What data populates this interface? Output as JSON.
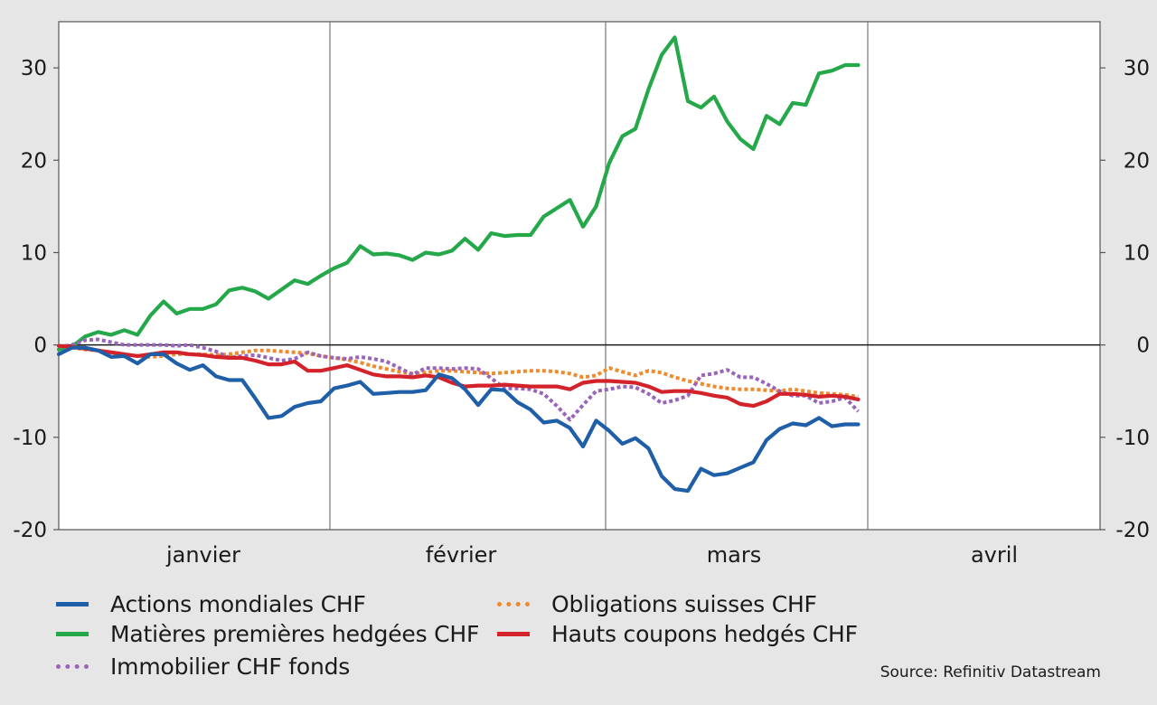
{
  "chart_data": {
    "type": "line",
    "title": "",
    "xlabel": "",
    "ylabel": "",
    "ylim": [
      -20,
      35
    ],
    "yticks": [
      -20,
      -10,
      0,
      10,
      20,
      30
    ],
    "ytick_labels": [
      "-20",
      "-10",
      "0",
      "10",
      "20",
      "30"
    ],
    "x_range": [
      0,
      77
    ],
    "month_labels": [
      "janvier",
      "février",
      "mars",
      "avril"
    ],
    "grid": "vertical month separators",
    "legend_position": "bottom",
    "source": "Source: Refinitiv Datastream",
    "series": [
      {
        "name": "Actions mondiales CHF",
        "color": "#1f5fa8",
        "style": "solid",
        "values": [
          -1,
          -0.3,
          -0.3,
          -0.6,
          -1.3,
          -1.2,
          -2,
          -1,
          -1,
          -2,
          -2.7,
          -2.2,
          -3.4,
          -3.8,
          -3.8,
          -5.8,
          -7.9,
          -7.7,
          -6.7,
          -6.3,
          -6.1,
          -4.7,
          -4.4,
          -4,
          -5.3,
          -5.2,
          -5.1,
          -5.1,
          -4.9,
          -3.2,
          -3.6,
          -4.8,
          -6.5,
          -4.8,
          -4.9,
          -6.2,
          -7,
          -8.4,
          -8.2,
          -9,
          -11,
          -8.2,
          -9.3,
          -10.7,
          -10.1,
          -11.2,
          -14.2,
          -15.6,
          -15.8,
          -13.4,
          -14.1,
          -13.9,
          -13.3,
          -12.7,
          -10.3,
          -9.1,
          -8.5,
          -8.7,
          -7.9,
          -8.8,
          -8.6,
          -8.6
        ]
      },
      {
        "name": "Matières premières hedgées CHF",
        "color": "#25a84a",
        "style": "solid",
        "values": [
          -0.5,
          -0.2,
          0.9,
          1.4,
          1.1,
          1.6,
          1.1,
          3.2,
          4.7,
          3.4,
          3.9,
          3.9,
          4.4,
          5.9,
          6.2,
          5.8,
          5,
          6,
          7,
          6.6,
          7.5,
          8.3,
          8.9,
          10.7,
          9.8,
          9.9,
          9.7,
          9.2,
          10,
          9.8,
          10.2,
          11.5,
          10.3,
          12.1,
          11.8,
          11.9,
          11.9,
          13.9,
          14.8,
          15.7,
          12.8,
          15,
          19.7,
          22.6,
          23.4,
          27.7,
          31.4,
          33.3,
          26.4,
          25.7,
          26.9,
          24.2,
          22.3,
          21.2,
          24.8,
          23.9,
          26.2,
          26,
          29.4,
          29.7,
          30.3,
          30.3
        ]
      },
      {
        "name": "Immobilier CHF fonds",
        "color": "#9a64b8",
        "style": "dotted",
        "values": [
          -0.2,
          0,
          0.5,
          0.6,
          0.3,
          0,
          0,
          0,
          0,
          -0.1,
          0,
          -0.3,
          -0.7,
          -1.4,
          -1.2,
          -1.1,
          -1.4,
          -1.7,
          -1.5,
          -0.8,
          -1.2,
          -1.4,
          -1.5,
          -1.3,
          -1.5,
          -1.8,
          -2.5,
          -3.2,
          -2.5,
          -2.5,
          -2.6,
          -2.5,
          -2.6,
          -3.6,
          -4.7,
          -4.7,
          -4.8,
          -5.3,
          -6.6,
          -8.1,
          -6.5,
          -5,
          -4.8,
          -4.5,
          -4.6,
          -5.3,
          -6.3,
          -6,
          -5.5,
          -3.3,
          -3.1,
          -2.7,
          -3.5,
          -3.5,
          -4.2,
          -5,
          -5.5,
          -5.5,
          -6.3,
          -6.1,
          -5.7,
          -7.2
        ]
      },
      {
        "name": "Obligations suisses CHF",
        "color": "#f08a2c",
        "style": "dotted",
        "values": [
          -0.1,
          -0.3,
          -0.5,
          -0.6,
          -0.8,
          -1,
          -1.2,
          -1.3,
          -1.2,
          -1,
          -1,
          -1,
          -1.1,
          -1,
          -0.8,
          -0.6,
          -0.6,
          -0.7,
          -0.8,
          -0.9,
          -1.2,
          -1.4,
          -1.6,
          -1.9,
          -2.3,
          -2.6,
          -2.9,
          -3.1,
          -3,
          -2.8,
          -2.8,
          -2.9,
          -3,
          -3.1,
          -3,
          -2.9,
          -2.8,
          -2.8,
          -2.9,
          -3.1,
          -3.5,
          -3.3,
          -2.5,
          -2.9,
          -3.3,
          -2.8,
          -3,
          -3.5,
          -3.9,
          -4.2,
          -4.5,
          -4.7,
          -4.8,
          -4.8,
          -4.9,
          -5,
          -4.8,
          -5,
          -5.2,
          -5.3,
          -5.4,
          -5.6
        ]
      },
      {
        "name": "Hauts coupons hedgés CHF",
        "color": "#d4222b",
        "style": "solid",
        "values": [
          -0.1,
          -0.2,
          -0.4,
          -0.6,
          -0.8,
          -1,
          -1.2,
          -1,
          -0.8,
          -0.8,
          -1,
          -1.1,
          -1.3,
          -1.4,
          -1.4,
          -1.7,
          -2.1,
          -2.1,
          -1.8,
          -2.8,
          -2.8,
          -2.5,
          -2.2,
          -2.7,
          -3.2,
          -3.4,
          -3.4,
          -3.5,
          -3.3,
          -3.5,
          -4.1,
          -4.5,
          -4.4,
          -4.4,
          -4.3,
          -4.4,
          -4.5,
          -4.5,
          -4.5,
          -4.8,
          -4.1,
          -3.9,
          -3.9,
          -4,
          -4.1,
          -4.5,
          -5.1,
          -5,
          -5,
          -5.2,
          -5.5,
          -5.7,
          -6.4,
          -6.6,
          -6.1,
          -5.3,
          -5.3,
          -5.4,
          -5.6,
          -5.5,
          -5.6,
          -5.9
        ]
      }
    ]
  }
}
